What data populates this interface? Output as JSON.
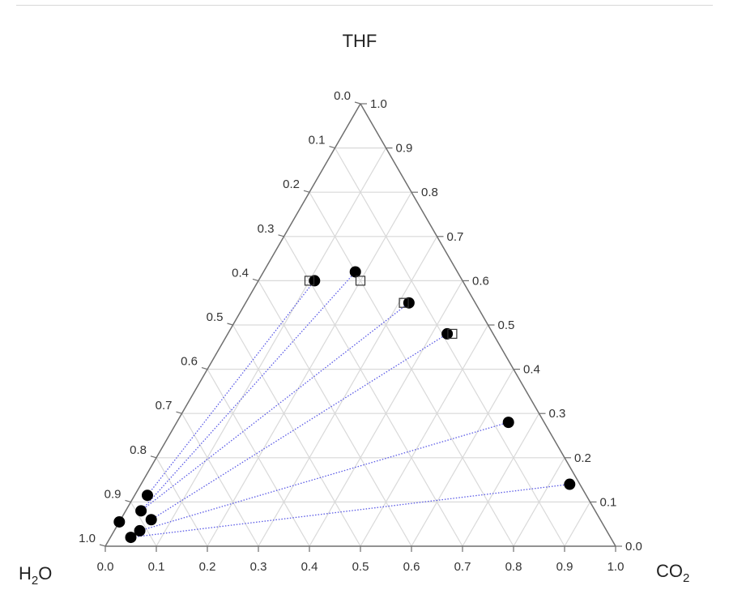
{
  "chart_data": {
    "type": "scatter",
    "subtype": "ternary",
    "vertex_labels": {
      "top": "THF",
      "left": "H2O",
      "right": "CO2"
    },
    "vertex_label_parts": {
      "left": {
        "main": "H",
        "sub": "2",
        "tail": "O"
      },
      "right": {
        "main": "CO",
        "sub": "2"
      }
    },
    "axes": {
      "bottom": {
        "component": "CO2",
        "range": [
          0,
          1
        ],
        "ticks": [
          "0.0",
          "0.1",
          "0.2",
          "0.3",
          "0.4",
          "0.5",
          "0.6",
          "0.7",
          "0.8",
          "0.9",
          "1.0"
        ]
      },
      "left": {
        "component": "H2O",
        "range": [
          0,
          1
        ],
        "ticks": [
          "0.0",
          "0.1",
          "0.2",
          "0.3",
          "0.4",
          "0.5",
          "0.6",
          "0.7",
          "0.8",
          "0.9",
          "1.0"
        ]
      },
      "right": {
        "component": "THF",
        "range": [
          0,
          1
        ],
        "ticks": [
          "0.0",
          "0.1",
          "0.2",
          "0.3",
          "0.4",
          "0.5",
          "0.6",
          "0.7",
          "0.8",
          "0.9",
          "1.0"
        ]
      }
    },
    "grid": true,
    "grid_step": 0.1,
    "series": [
      {
        "marker": "filled-circle",
        "points": [
          {
            "thf": 0.6,
            "co2": 0.11,
            "h2o": 0.29
          },
          {
            "thf": 0.62,
            "co2": 0.18,
            "h2o": 0.2
          },
          {
            "thf": 0.55,
            "co2": 0.32,
            "h2o": 0.13
          },
          {
            "thf": 0.48,
            "co2": 0.43,
            "h2o": 0.09
          },
          {
            "thf": 0.28,
            "co2": 0.65,
            "h2o": 0.07
          },
          {
            "thf": 0.14,
            "co2": 0.84,
            "h2o": 0.02
          },
          {
            "thf": 0.115,
            "co2": 0.025,
            "h2o": 0.86
          },
          {
            "thf": 0.08,
            "co2": 0.03,
            "h2o": 0.89
          },
          {
            "thf": 0.06,
            "co2": 0.06,
            "h2o": 0.88
          },
          {
            "thf": 0.055,
            "co2": 0.0,
            "h2o": 0.945
          },
          {
            "thf": 0.035,
            "co2": 0.05,
            "h2o": 0.915
          },
          {
            "thf": 0.02,
            "co2": 0.04,
            "h2o": 0.94
          }
        ]
      },
      {
        "marker": "open-square",
        "points": [
          {
            "thf": 0.6,
            "co2": 0.1,
            "h2o": 0.3
          },
          {
            "thf": 0.6,
            "co2": 0.2,
            "h2o": 0.2
          },
          {
            "thf": 0.55,
            "co2": 0.31,
            "h2o": 0.14
          },
          {
            "thf": 0.48,
            "co2": 0.44,
            "h2o": 0.08
          }
        ]
      }
    ],
    "tie_lines": {
      "style": "dotted",
      "color": "#5a5ae6",
      "pairs": [
        [
          {
            "thf": 0.6,
            "co2": 0.11,
            "h2o": 0.29
          },
          {
            "thf": 0.115,
            "co2": 0.025,
            "h2o": 0.86
          }
        ],
        [
          {
            "thf": 0.62,
            "co2": 0.18,
            "h2o": 0.2
          },
          {
            "thf": 0.08,
            "co2": 0.03,
            "h2o": 0.89
          }
        ],
        [
          {
            "thf": 0.55,
            "co2": 0.32,
            "h2o": 0.13
          },
          {
            "thf": 0.08,
            "co2": 0.03,
            "h2o": 0.89
          }
        ],
        [
          {
            "thf": 0.48,
            "co2": 0.43,
            "h2o": 0.09
          },
          {
            "thf": 0.06,
            "co2": 0.06,
            "h2o": 0.88
          }
        ],
        [
          {
            "thf": 0.28,
            "co2": 0.65,
            "h2o": 0.07
          },
          {
            "thf": 0.035,
            "co2": 0.05,
            "h2o": 0.915
          }
        ],
        [
          {
            "thf": 0.14,
            "co2": 0.84,
            "h2o": 0.02
          },
          {
            "thf": 0.02,
            "co2": 0.04,
            "h2o": 0.94
          }
        ]
      ]
    },
    "colors": {
      "axis": "#6f6f6f",
      "grid": "#d9d9d9",
      "marker": "#000000",
      "tie_line": "#5a5ae6"
    }
  }
}
